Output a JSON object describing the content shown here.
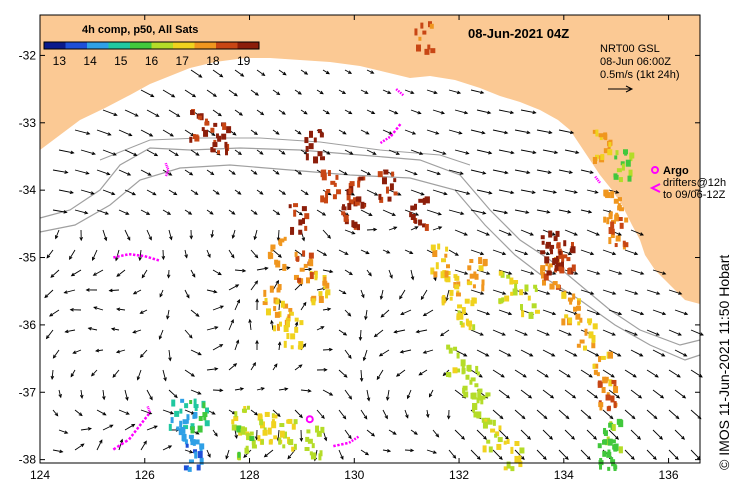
{
  "title": "08-Jun-2021 04Z",
  "composite_label": "4h comp, p50, All Sats",
  "colorbar": {
    "ticks": [
      "13",
      "14",
      "15",
      "16",
      "17",
      "18",
      "19"
    ],
    "min": 12.5,
    "max": 19.5,
    "colors": [
      "#0a1a8c",
      "#1e4fd8",
      "#2fa0e6",
      "#20c8a0",
      "#41c83c",
      "#b4dc28",
      "#f0d21e",
      "#f0961e",
      "#c84614",
      "#8c1e0a"
    ]
  },
  "reference": {
    "line1": "NRT00 GSL",
    "line2": "08-Jun 06:00Z",
    "line3": "0.5m/s (1kt 24h)"
  },
  "argo": {
    "label": "Argo",
    "line1": "drifters@12h",
    "line2": "to 09/06-12Z",
    "color": "#ff00ff"
  },
  "credit": "© IMOS 11-Jun-2021 11:50 Hobart",
  "axes": {
    "lon_ticks": [
      "124",
      "126",
      "128",
      "130",
      "132",
      "134",
      "136"
    ],
    "lat_ticks": [
      "-32",
      "-33",
      "-34",
      "-35",
      "-36",
      "-37",
      "-38"
    ],
    "lon_range": [
      124,
      136.6
    ],
    "lat_range": [
      -38.05,
      -31.4
    ]
  },
  "colors": {
    "land": "#fbc994",
    "ocean": "#ffffff",
    "bathymetry": "#a0a0a0"
  },
  "sst_patches": [
    {
      "lon": 126.6,
      "lat": -37.3,
      "v": 14.6
    },
    {
      "lon": 126.8,
      "lat": -37.5,
      "v": 14.3
    },
    {
      "lon": 127.0,
      "lat": -37.3,
      "v": 15.2
    },
    {
      "lon": 126.9,
      "lat": -37.9,
      "v": 14.0
    },
    {
      "lon": 127.8,
      "lat": -37.4,
      "v": 16.6
    },
    {
      "lon": 128.3,
      "lat": -37.5,
      "v": 16.9
    },
    {
      "lon": 127.9,
      "lat": -37.7,
      "v": 16.2
    },
    {
      "lon": 128.7,
      "lat": -37.6,
      "v": 16.6
    },
    {
      "lon": 129.2,
      "lat": -37.7,
      "v": 16.4
    },
    {
      "lon": 131.9,
      "lat": -36.5,
      "v": 16.5
    },
    {
      "lon": 132.2,
      "lat": -36.8,
      "v": 16.3
    },
    {
      "lon": 132.4,
      "lat": -37.2,
      "v": 16.4
    },
    {
      "lon": 132.6,
      "lat": -37.6,
      "v": 16.7
    },
    {
      "lon": 133.0,
      "lat": -37.9,
      "v": 16.8
    },
    {
      "lon": 134.9,
      "lat": -37.6,
      "v": 15.9
    },
    {
      "lon": 134.8,
      "lat": -37.9,
      "v": 15.6
    },
    {
      "lon": 128.6,
      "lat": -35.8,
      "v": 17.4
    },
    {
      "lon": 128.8,
      "lat": -36.1,
      "v": 17.1
    },
    {
      "lon": 128.4,
      "lat": -35.6,
      "v": 17.6
    },
    {
      "lon": 129.3,
      "lat": -35.4,
      "v": 17.3
    },
    {
      "lon": 129.0,
      "lat": -35.1,
      "v": 18.0
    },
    {
      "lon": 128.5,
      "lat": -34.9,
      "v": 17.8
    },
    {
      "lon": 131.6,
      "lat": -35.0,
      "v": 17.4
    },
    {
      "lon": 131.8,
      "lat": -35.4,
      "v": 17.2
    },
    {
      "lon": 132.1,
      "lat": -35.8,
      "v": 16.9
    },
    {
      "lon": 132.3,
      "lat": -35.2,
      "v": 17.6
    },
    {
      "lon": 132.9,
      "lat": -35.4,
      "v": 16.8
    },
    {
      "lon": 133.3,
      "lat": -35.6,
      "v": 16.6
    },
    {
      "lon": 133.7,
      "lat": -35.2,
      "v": 17.9
    },
    {
      "lon": 134.1,
      "lat": -35.7,
      "v": 17.6
    },
    {
      "lon": 134.4,
      "lat": -36.1,
      "v": 17.3
    },
    {
      "lon": 134.7,
      "lat": -36.6,
      "v": 17.5
    },
    {
      "lon": 134.8,
      "lat": -37.0,
      "v": 18.1
    },
    {
      "lon": 134.9,
      "lat": -34.2,
      "v": 17.8
    },
    {
      "lon": 135.0,
      "lat": -34.6,
      "v": 18.1
    },
    {
      "lon": 133.7,
      "lat": -34.8,
      "v": 19.3
    },
    {
      "lon": 133.8,
      "lat": -35.0,
      "v": 19.0
    },
    {
      "lon": 134.0,
      "lat": -34.95,
      "v": 18.6
    },
    {
      "lon": 130.0,
      "lat": -34.0,
      "v": 18.6
    },
    {
      "lon": 129.5,
      "lat": -33.9,
      "v": 18.4
    },
    {
      "lon": 128.9,
      "lat": -34.4,
      "v": 18.9
    },
    {
      "lon": 129.9,
      "lat": -34.3,
      "v": 18.9
    },
    {
      "lon": 127.4,
      "lat": -33.2,
      "v": 19.0
    },
    {
      "lon": 127.0,
      "lat": -33.0,
      "v": 18.8
    },
    {
      "lon": 129.2,
      "lat": -33.3,
      "v": 19.2
    },
    {
      "lon": 131.3,
      "lat": -31.7,
      "v": 18.3
    },
    {
      "lon": 134.7,
      "lat": -33.3,
      "v": 17.5
    },
    {
      "lon": 135.1,
      "lat": -33.6,
      "v": 16.0
    },
    {
      "lon": 131.2,
      "lat": -34.3,
      "v": 19.0
    },
    {
      "lon": 130.6,
      "lat": -33.9,
      "v": 18.8
    }
  ],
  "argo_tracks": [
    {
      "points": [
        [
          125.4,
          -35.0
        ],
        [
          125.7,
          -34.95
        ],
        [
          126.0,
          -34.98
        ],
        [
          126.3,
          -35.05
        ]
      ]
    },
    {
      "points": [
        [
          125.4,
          -37.85
        ],
        [
          125.7,
          -37.7
        ],
        [
          125.9,
          -37.5
        ],
        [
          126.1,
          -37.3
        ],
        [
          126.05,
          -37.2
        ]
      ]
    },
    {
      "points": [
        [
          129.6,
          -37.8
        ],
        [
          129.9,
          -37.75
        ],
        [
          130.1,
          -37.65
        ]
      ]
    },
    {
      "points": [
        [
          126.4,
          -33.6
        ],
        [
          126.45,
          -33.7
        ],
        [
          126.4,
          -33.8
        ]
      ]
    },
    {
      "points": [
        [
          130.5,
          -33.3
        ],
        [
          130.7,
          -33.2
        ],
        [
          130.9,
          -33.0
        ]
      ]
    },
    {
      "points": [
        [
          130.8,
          -32.5
        ],
        [
          130.95,
          -32.6
        ]
      ]
    },
    {
      "points": [
        [
          134.6,
          -33.8
        ],
        [
          134.7,
          -33.9
        ]
      ]
    }
  ],
  "argo_marker": {
    "lon": 129.15,
    "lat": -37.4
  }
}
